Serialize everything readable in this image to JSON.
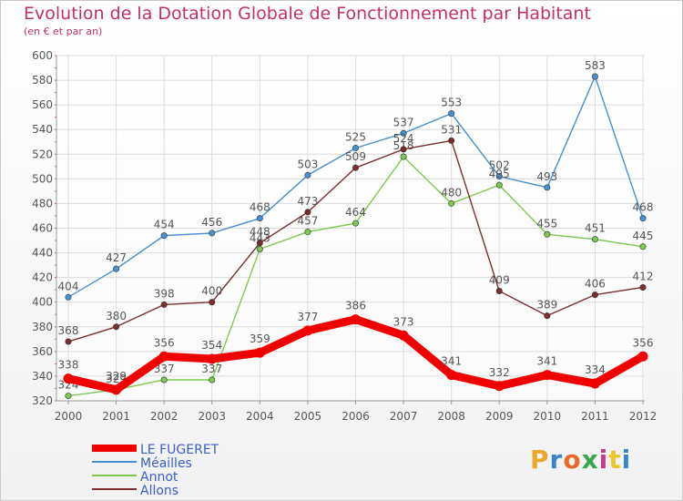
{
  "title": "Evolution de la Dotation Globale de Fonctionnement par Habitant",
  "subtitle": "(en € et par an)",
  "logo": {
    "letters": [
      "P",
      "r",
      "o",
      "x",
      "i",
      "t",
      "i"
    ],
    "colors": [
      "#e8a82a",
      "#3a86c8",
      "#e86a2a",
      "#3aa84a",
      "#c83a8a",
      "#e8c82a",
      "#3a86c8"
    ]
  },
  "chart_data": {
    "type": "line",
    "title": "Evolution de la Dotation Globale de Fonctionnement par Habitant",
    "x": [
      "2000",
      "2001",
      "2002",
      "2003",
      "2004",
      "2005",
      "2006",
      "2007",
      "2008",
      "2009",
      "2010",
      "2011",
      "2012"
    ],
    "ylim": [
      320,
      600
    ],
    "yticks": [
      320,
      340,
      360,
      380,
      400,
      420,
      440,
      460,
      480,
      500,
      520,
      540,
      560,
      580,
      600
    ],
    "grid": true,
    "legend": "bottom-left",
    "series": [
      {
        "name": "Méailles",
        "color": "#4a8fd0",
        "values": [
          404,
          427,
          454,
          456,
          468,
          503,
          525,
          537,
          553,
          502,
          493,
          583,
          468
        ]
      },
      {
        "name": "Annot",
        "color": "#7ec850",
        "values": [
          324,
          329,
          337,
          337,
          443,
          457,
          464,
          518,
          480,
          495,
          455,
          451,
          445
        ]
      },
      {
        "name": "Allons",
        "color": "#7a2e2e",
        "values": [
          368,
          380,
          398,
          400,
          448,
          473,
          509,
          524,
          531,
          409,
          389,
          406,
          412
        ]
      },
      {
        "name": "LE FUGERET",
        "color": "#f00000",
        "values": [
          338,
          329,
          356,
          354,
          359,
          377,
          386,
          373,
          341,
          332,
          341,
          334,
          356
        ]
      }
    ],
    "legend_order": [
      "LE FUGERET",
      "Méailles",
      "Annot",
      "Allons"
    ]
  }
}
